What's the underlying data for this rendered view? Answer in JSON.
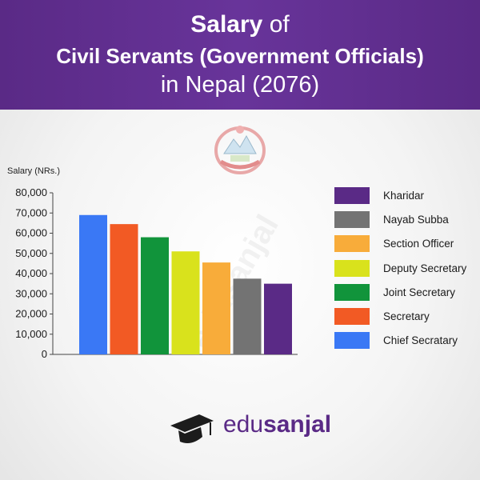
{
  "header": {
    "line1_bold": "Salary",
    "line1_rest": " of",
    "line2": "Civil Servants (Government Officials)",
    "line3": "in Nepal (2076)"
  },
  "chart_data": {
    "type": "bar",
    "ylabel": "Salary (NRs.)",
    "ylim": [
      0,
      80000
    ],
    "yticks": [
      0,
      10000,
      20000,
      30000,
      40000,
      50000,
      60000,
      70000,
      80000
    ],
    "ytick_labels": [
      "0",
      "10,000",
      "20,000",
      "30,000",
      "40,000",
      "50,000",
      "60,000",
      "70,000",
      "80,000"
    ],
    "grid": false,
    "legend_position": "right",
    "bars": [
      {
        "name": "Chief Secratary",
        "value": 69000,
        "color": "#3a78f5"
      },
      {
        "name": "Secretary",
        "value": 64500,
        "color": "#f25a24"
      },
      {
        "name": "Joint Secretary",
        "value": 58000,
        "color": "#11943b"
      },
      {
        "name": "Deputy Secretary",
        "value": 51000,
        "color": "#d9e21c"
      },
      {
        "name": "Section Officer",
        "value": 45500,
        "color": "#f8ac3a"
      },
      {
        "name": "Nayab Subba",
        "value": 37500,
        "color": "#737373"
      },
      {
        "name": "Kharidar",
        "value": 35000,
        "color": "#5a2a86"
      }
    ],
    "legend": [
      {
        "label": "Kharidar",
        "color": "#5a2a86"
      },
      {
        "label": "Nayab Subba",
        "color": "#737373"
      },
      {
        "label": "Section Officer",
        "color": "#f8ac3a"
      },
      {
        "label": "Deputy Secretary",
        "color": "#d9e21c"
      },
      {
        "label": "Joint Secretary",
        "color": "#11943b"
      },
      {
        "label": "Secretary",
        "color": "#f25a24"
      },
      {
        "label": "Chief Secratary",
        "color": "#3a78f5"
      }
    ]
  },
  "watermark": "edusanjal",
  "logo": {
    "part1": "edu",
    "part2": "sanjal",
    "icon": "graduation-cap-icon",
    "color": "#5a2a86"
  },
  "emblem_icon": "nepal-emblem-icon"
}
